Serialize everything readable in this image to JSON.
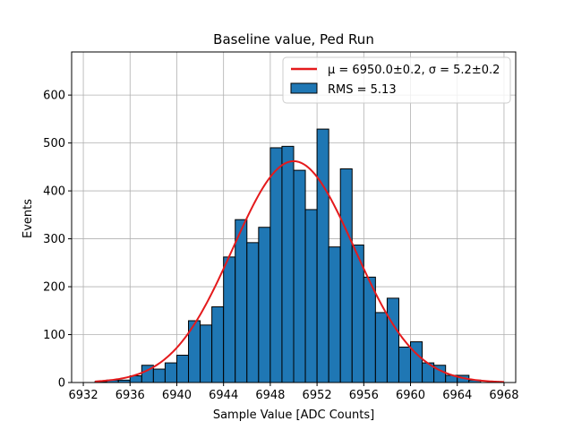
{
  "chart_data": {
    "type": "bar",
    "title": "Baseline value, Ped Run",
    "xlabel": "Sample Value [ADC Counts]",
    "ylabel": "Events",
    "xlim": [
      6931,
      6969
    ],
    "ylim": [
      0,
      690
    ],
    "xticks": [
      6932,
      6936,
      6940,
      6944,
      6948,
      6952,
      6956,
      6960,
      6964,
      6968
    ],
    "yticks": [
      0,
      100,
      200,
      300,
      400,
      500,
      600
    ],
    "grid": true,
    "legend_position": "top-right",
    "bin_width": 1,
    "bins": [
      {
        "start": 6933,
        "value": 2
      },
      {
        "start": 6934,
        "value": 5
      },
      {
        "start": 6935,
        "value": 5
      },
      {
        "start": 6936,
        "value": 14
      },
      {
        "start": 6937,
        "value": 36
      },
      {
        "start": 6938,
        "value": 28
      },
      {
        "start": 6939,
        "value": 41
      },
      {
        "start": 6940,
        "value": 57
      },
      {
        "start": 6941,
        "value": 129
      },
      {
        "start": 6942,
        "value": 120
      },
      {
        "start": 6943,
        "value": 158
      },
      {
        "start": 6944,
        "value": 262
      },
      {
        "start": 6945,
        "value": 340
      },
      {
        "start": 6946,
        "value": 292
      },
      {
        "start": 6947,
        "value": 324
      },
      {
        "start": 6948,
        "value": 490
      },
      {
        "start": 6949,
        "value": 493
      },
      {
        "start": 6950,
        "value": 443
      },
      {
        "start": 6951,
        "value": 361
      },
      {
        "start": 6952,
        "value": 529
      },
      {
        "start": 6953,
        "value": 283
      },
      {
        "start": 6954,
        "value": 446
      },
      {
        "start": 6955,
        "value": 287
      },
      {
        "start": 6956,
        "value": 220
      },
      {
        "start": 6957,
        "value": 146
      },
      {
        "start": 6958,
        "value": 176
      },
      {
        "start": 6959,
        "value": 74
      },
      {
        "start": 6960,
        "value": 85
      },
      {
        "start": 6961,
        "value": 41
      },
      {
        "start": 6962,
        "value": 36
      },
      {
        "start": 6963,
        "value": 15
      },
      {
        "start": 6964,
        "value": 15
      },
      {
        "start": 6965,
        "value": 5
      }
    ],
    "fit": {
      "mu": 6950.0,
      "sigma": 5.2,
      "amplitude": 462,
      "x_range": [
        6933,
        6968
      ]
    },
    "legend": {
      "fit_label_prefix": "μ = 6950.0±0.2, ",
      "fit_label_suffix": "σ = 5.2±0.2",
      "hist_label": "RMS = 5.13"
    },
    "colors": {
      "bar_fill": "#1f77b4",
      "bar_edge": "#000000",
      "fit_line": "#e41a1c",
      "grid": "#b0b0b0"
    }
  }
}
